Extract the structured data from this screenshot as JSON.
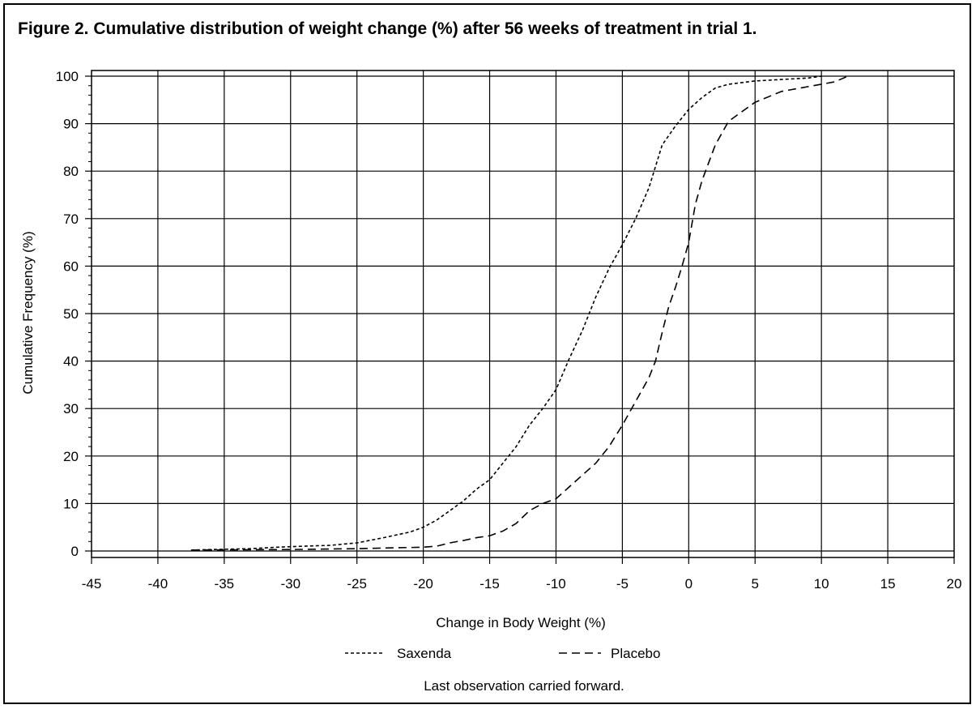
{
  "chart_data": {
    "type": "line",
    "title": "Figure 2. Cumulative distribution of weight change (%) after 56 weeks of treatment in trial 1.",
    "xlabel": "Change in Body Weight (%)",
    "ylabel": "Cumulative Frequency (%)",
    "xlim": [
      -45,
      20
    ],
    "ylim": [
      0,
      100
    ],
    "xticks": [
      -45,
      -40,
      -35,
      -30,
      -25,
      -20,
      -15,
      -10,
      -5,
      0,
      5,
      10,
      15,
      20
    ],
    "yticks": [
      0,
      10,
      20,
      30,
      40,
      50,
      60,
      70,
      80,
      90,
      100
    ],
    "grid": true,
    "legend_position": "bottom",
    "footnote": "Last observation carried forward.",
    "series": [
      {
        "name": "Saxenda",
        "style": "short-dash",
        "x": [
          -37.5,
          -33,
          -31,
          -29,
          -27,
          -25,
          -23,
          -21,
          -20,
          -19,
          -18,
          -17,
          -16,
          -15,
          -14,
          -13,
          -12,
          -11,
          -10,
          -9,
          -8,
          -7,
          -6,
          -5,
          -4,
          -3,
          -2,
          -1,
          0,
          1,
          2,
          3,
          5,
          7,
          9,
          10
        ],
        "y": [
          0.2,
          0.5,
          0.8,
          1.0,
          1.2,
          1.7,
          2.8,
          4.0,
          5.0,
          6.5,
          8.5,
          10.5,
          13.0,
          15.0,
          18.5,
          22.0,
          26.5,
          30.0,
          34.0,
          40.5,
          46.5,
          53.5,
          59.5,
          64.5,
          70.0,
          76.5,
          85.5,
          89.5,
          93.0,
          95.5,
          97.5,
          98.3,
          99.0,
          99.3,
          99.6,
          100
        ]
      },
      {
        "name": "Placebo",
        "style": "long-dash",
        "x": [
          -37.5,
          -30,
          -25,
          -20,
          -19,
          -18,
          -17,
          -16,
          -15,
          -14,
          -13,
          -12,
          -11,
          -10,
          -9,
          -8,
          -7,
          -6,
          -5,
          -4,
          -3,
          -2.5,
          -2,
          -1.5,
          -1,
          -0.5,
          0,
          0.5,
          1,
          2,
          3,
          5,
          7,
          9,
          11,
          12
        ],
        "y": [
          0.2,
          0.3,
          0.5,
          0.8,
          1.0,
          1.7,
          2.2,
          2.8,
          3.2,
          4.2,
          5.8,
          8.5,
          10.0,
          11.0,
          13.5,
          16.0,
          18.5,
          22.0,
          26.5,
          31.5,
          36.5,
          40.0,
          46.0,
          51.5,
          55.5,
          60.0,
          65.0,
          73.0,
          78.0,
          85.5,
          90.5,
          94.5,
          96.8,
          97.8,
          98.8,
          100
        ]
      }
    ]
  }
}
